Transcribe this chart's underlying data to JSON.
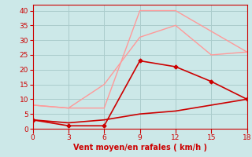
{
  "xlabel": "Vent moyen/en rafales ( km/h )",
  "xlim": [
    0,
    18
  ],
  "ylim": [
    0,
    42
  ],
  "xticks": [
    0,
    3,
    6,
    9,
    12,
    15,
    18
  ],
  "yticks": [
    0,
    5,
    10,
    15,
    20,
    25,
    30,
    35,
    40
  ],
  "bg_color": "#cce8e8",
  "grid_color": "#aacccc",
  "line1": {
    "x": [
      0,
      3,
      6,
      9,
      12,
      15,
      18
    ],
    "y": [
      8,
      7,
      7,
      40,
      40,
      33,
      26
    ],
    "color": "#ff9999",
    "lw": 1.0
  },
  "line2": {
    "x": [
      0,
      3,
      6,
      9,
      12,
      15,
      18
    ],
    "y": [
      8,
      7,
      15,
      31,
      35,
      25,
      26
    ],
    "color": "#ff9999",
    "lw": 1.0
  },
  "line3": {
    "x": [
      0,
      3,
      6,
      9,
      12,
      15,
      18
    ],
    "y": [
      3,
      1,
      1,
      23,
      21,
      16,
      10
    ],
    "color": "#cc0000",
    "lw": 1.2,
    "marker": "D",
    "ms": 2.5
  },
  "line4": {
    "x": [
      0,
      3,
      6,
      9,
      12,
      15,
      18
    ],
    "y": [
      3,
      2,
      3,
      5,
      6,
      8,
      10
    ],
    "color": "#cc0000",
    "lw": 1.2
  },
  "tick_color": "#cc0000",
  "label_color": "#cc0000",
  "label_fontsize": 7,
  "tick_fontsize": 6.5
}
